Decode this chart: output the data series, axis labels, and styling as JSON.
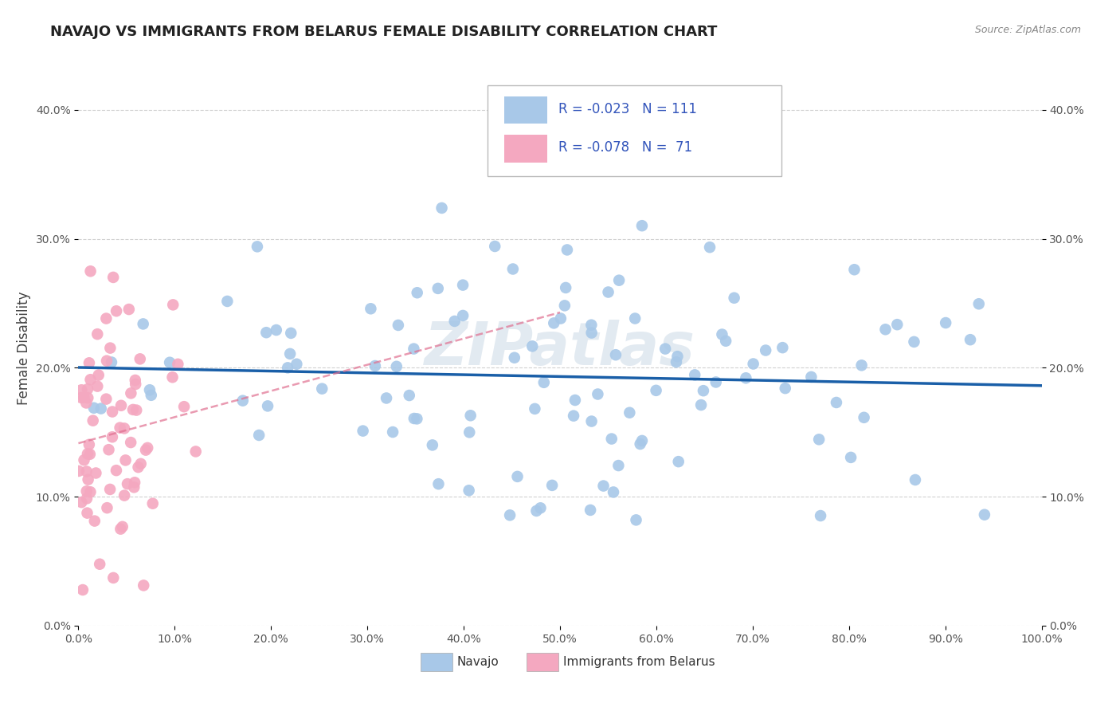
{
  "title": "NAVAJO VS IMMIGRANTS FROM BELARUS FEMALE DISABILITY CORRELATION CHART",
  "source": "Source: ZipAtlas.com",
  "ylabel": "Female Disability",
  "x_min": 0.0,
  "x_max": 1.0,
  "y_min": 0.0,
  "y_max": 0.43,
  "navajo_R": -0.023,
  "navajo_N": 111,
  "belarus_R": -0.078,
  "belarus_N": 71,
  "navajo_color": "#a8c8e8",
  "belarus_color": "#f4a8c0",
  "navajo_line_color": "#1a5fa8",
  "belarus_line_color": "#e07090",
  "legend_label_navajo": "Navajo",
  "legend_label_belarus": "Immigrants from Belarus",
  "watermark": "ZIPatlas",
  "background_color": "#ffffff",
  "grid_color": "#cccccc",
  "tick_color": "#555555",
  "legend_text_color": "#3355bb",
  "title_color": "#222222",
  "source_color": "#888888",
  "yticks": [
    0.0,
    0.1,
    0.2,
    0.3,
    0.4
  ],
  "ytick_labels": [
    "0.0%",
    "10.0%",
    "20.0%",
    "30.0%",
    "40.0%"
  ],
  "xticks": [
    0.0,
    0.1,
    0.2,
    0.3,
    0.4,
    0.5,
    0.6,
    0.7,
    0.8,
    0.9,
    1.0
  ],
  "xtick_labels": [
    "0.0%",
    "10.0%",
    "20.0%",
    "30.0%",
    "40.0%",
    "50.0%",
    "60.0%",
    "70.0%",
    "80.0%",
    "90.0%",
    "100.0%"
  ]
}
